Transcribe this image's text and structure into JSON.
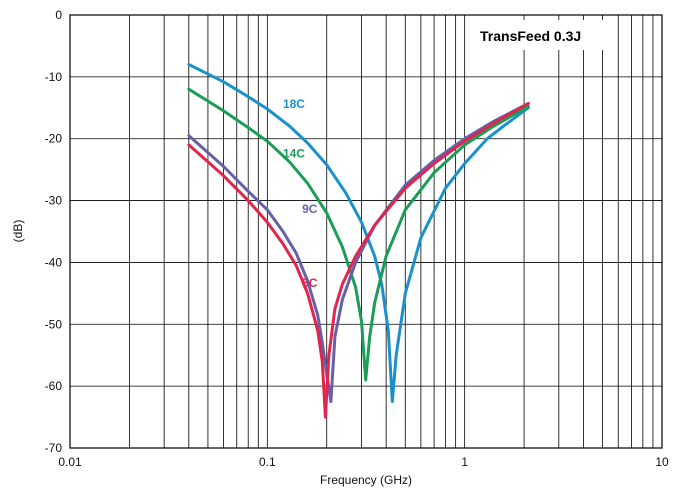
{
  "chart_data": {
    "type": "line",
    "title": "TransFeed 0.3J",
    "xlabel": "Frequency (GHz)",
    "ylabel": "(dB)",
    "x_scale": "log",
    "xlim": [
      0.01,
      10
    ],
    "ylim": [
      -70,
      0
    ],
    "grid": true,
    "x_ticks": [
      {
        "value": 0.01,
        "label": "0.01"
      },
      {
        "value": 0.1,
        "label": "0.1"
      },
      {
        "value": 1,
        "label": "1"
      },
      {
        "value": 10,
        "label": "10"
      }
    ],
    "y_ticks": [
      {
        "value": 0,
        "label": "0"
      },
      {
        "value": -10,
        "label": "-10"
      },
      {
        "value": -20,
        "label": "-20"
      },
      {
        "value": -30,
        "label": "-30"
      },
      {
        "value": -40,
        "label": "-40"
      },
      {
        "value": -50,
        "label": "-50"
      },
      {
        "value": -60,
        "label": "-60"
      },
      {
        "value": -70,
        "label": "-70"
      }
    ],
    "series": [
      {
        "name": "18C",
        "color": "#1b91cc",
        "label_at": [
          0.12,
          -15
        ],
        "x": [
          0.04,
          0.06,
          0.08,
          0.1,
          0.13,
          0.16,
          0.2,
          0.25,
          0.3,
          0.35,
          0.38,
          0.41,
          0.43,
          0.45,
          0.5,
          0.6,
          0.8,
          1.0,
          1.3,
          1.6,
          2.1
        ],
        "y": [
          -8,
          -10.8,
          -13.2,
          -15.2,
          -18.0,
          -20.7,
          -24.2,
          -28.8,
          -33.5,
          -39.0,
          -43.5,
          -51.0,
          -62.5,
          -55.0,
          -45.0,
          -36.0,
          -28.0,
          -24.0,
          -20.0,
          -17.8,
          -15.0
        ]
      },
      {
        "name": "14C",
        "color": "#1a9e57",
        "label_at": [
          0.12,
          -23
        ],
        "x": [
          0.04,
          0.06,
          0.08,
          0.1,
          0.13,
          0.16,
          0.2,
          0.24,
          0.28,
          0.3,
          0.315,
          0.33,
          0.35,
          0.4,
          0.5,
          0.7,
          1.0,
          1.4,
          2.1
        ],
        "y": [
          -12,
          -15.5,
          -18.2,
          -20.4,
          -23.8,
          -27.2,
          -32.0,
          -37.5,
          -44.0,
          -49.5,
          -59.0,
          -52.0,
          -46.5,
          -39.0,
          -31.5,
          -25.5,
          -21.0,
          -18.0,
          -14.8
        ]
      },
      {
        "name": "9C",
        "color": "#6660a8",
        "label_at": [
          0.15,
          -32
        ],
        "x": [
          0.04,
          0.06,
          0.08,
          0.1,
          0.12,
          0.14,
          0.16,
          0.18,
          0.19,
          0.2,
          0.21,
          0.22,
          0.24,
          0.28,
          0.35,
          0.5,
          0.7,
          1.0,
          1.4,
          2.1
        ],
        "y": [
          -19.5,
          -24.5,
          -28.5,
          -31.5,
          -35.0,
          -38.5,
          -43.0,
          -48.5,
          -53.0,
          -58.0,
          -62.5,
          -52.0,
          -46.0,
          -40.0,
          -34.0,
          -27.5,
          -23.5,
          -20.0,
          -17.2,
          -14.3
        ]
      },
      {
        "name": "5C",
        "color": "#e1254f",
        "label_at": [
          0.15,
          -44
        ],
        "x": [
          0.04,
          0.06,
          0.08,
          0.1,
          0.12,
          0.14,
          0.16,
          0.18,
          0.19,
          0.197,
          0.205,
          0.22,
          0.24,
          0.28,
          0.35,
          0.5,
          0.7,
          1.0,
          1.4,
          2.1
        ],
        "y": [
          -21,
          -26,
          -30,
          -33.5,
          -37.0,
          -40.5,
          -45.0,
          -51.0,
          -56.0,
          -65.0,
          -55.0,
          -47.5,
          -43.5,
          -39.0,
          -34.0,
          -28.0,
          -24.0,
          -20.4,
          -17.5,
          -14.3
        ]
      }
    ]
  }
}
